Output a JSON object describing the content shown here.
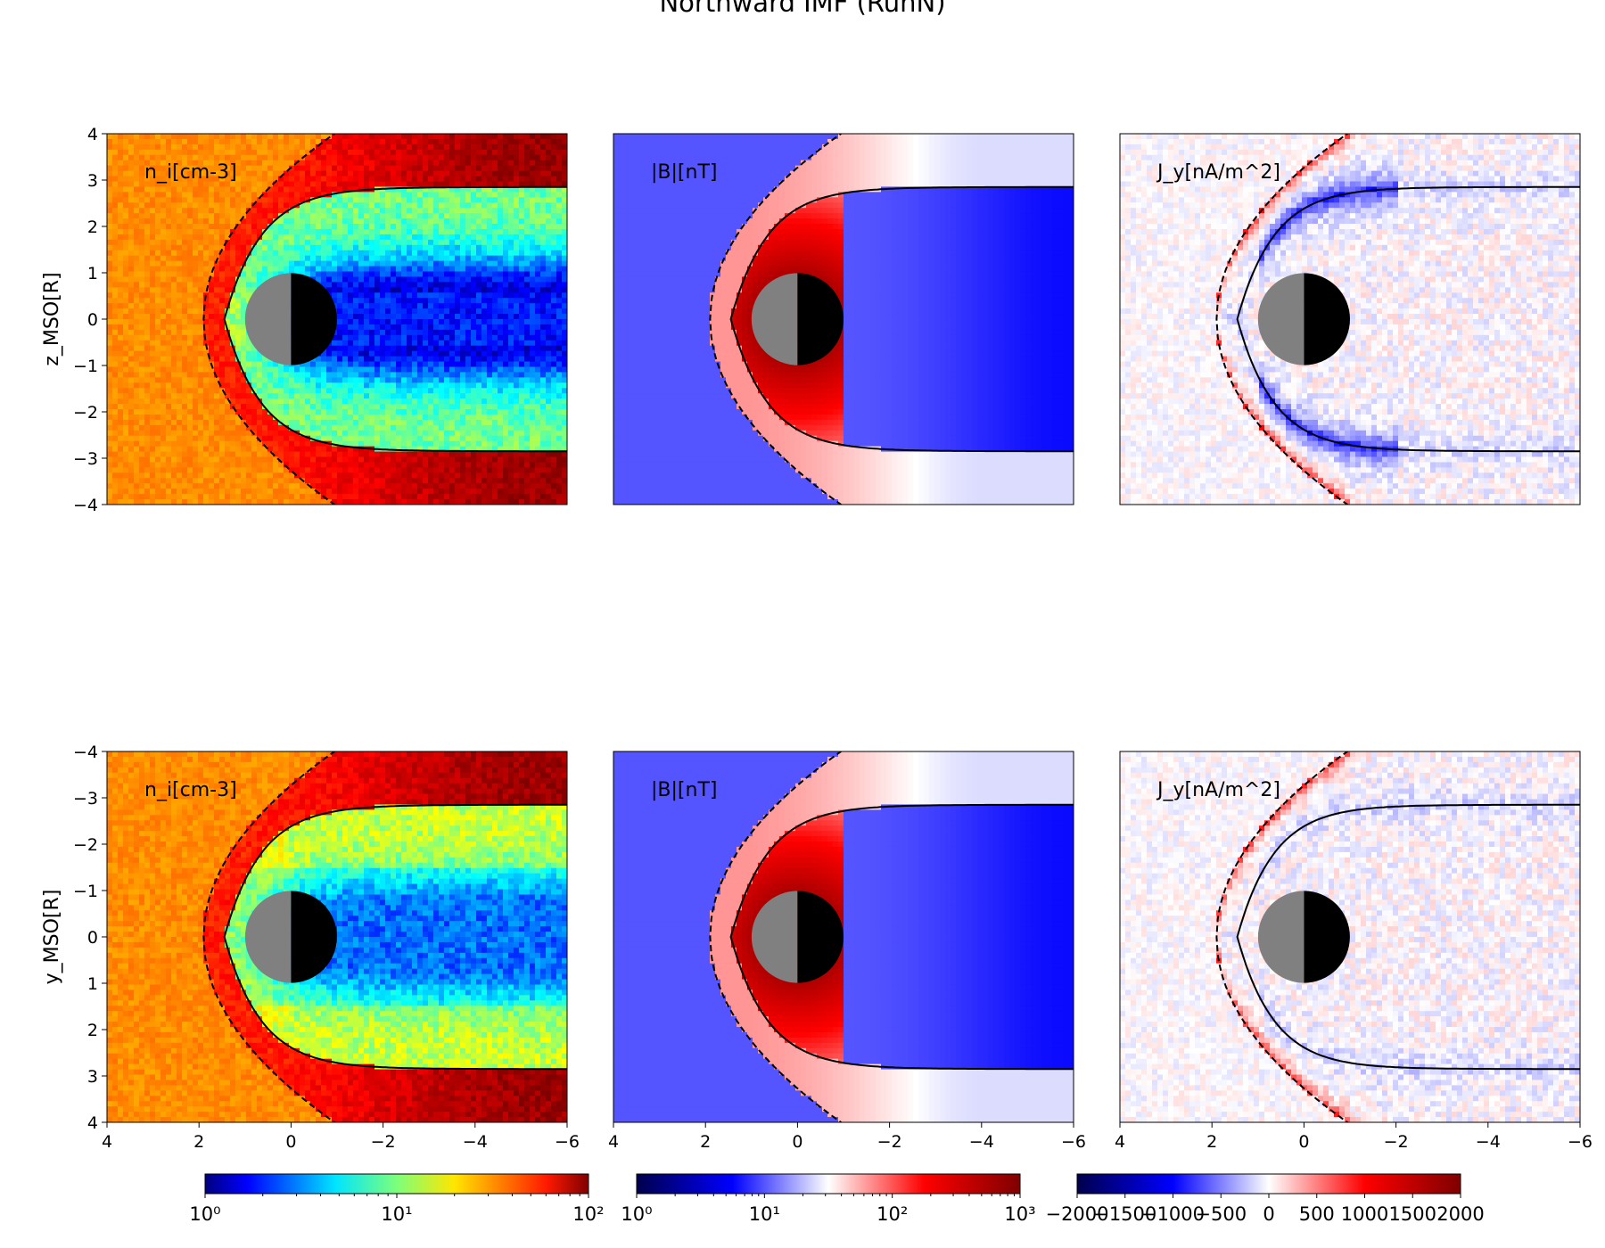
{
  "figure": {
    "title": "Northward IMF (RunN)"
  },
  "chart_data": [
    {
      "type": "heatmap",
      "row": "top",
      "quantity_label": "n_i[cm-3]",
      "field": "ion density",
      "colormap": "jet",
      "scale": "log",
      "xlim": [
        4,
        -6
      ],
      "ylim": [
        -4,
        4
      ],
      "ylabel": "z_MSO[R]",
      "yticks": [
        "4",
        "3",
        "2",
        "1",
        "0",
        "−1",
        "−2",
        "−3",
        "−4"
      ],
      "xticks": [],
      "background_value": 30,
      "planet": {
        "center": [
          0,
          0
        ],
        "radius": 1,
        "dayside": "gray",
        "nightside": "black"
      },
      "boundaries": {
        "bow_shock": "dashed",
        "magnetopause": "solid"
      }
    },
    {
      "type": "heatmap",
      "row": "top",
      "quantity_label": "|B|[nT]",
      "field": "magnetic field magnitude",
      "colormap": "seismic",
      "scale": "log",
      "xlim": [
        4,
        -6
      ],
      "ylim": [
        -4,
        4
      ],
      "xticks": [],
      "yticks": [],
      "background_value": 10,
      "planet": {
        "center": [
          0,
          0
        ],
        "radius": 1,
        "dayside": "gray",
        "nightside": "black"
      },
      "boundaries": {
        "bow_shock": "dashed",
        "magnetopause": "solid"
      }
    },
    {
      "type": "heatmap",
      "row": "top",
      "quantity_label": "J_y[nA/m^2]",
      "field": "current density y",
      "colormap": "seismic",
      "scale": "linear",
      "xlim": [
        4,
        -6
      ],
      "ylim": [
        -4,
        4
      ],
      "xticks": [],
      "yticks": [],
      "background_value": 0,
      "planet": {
        "center": [
          0,
          0
        ],
        "radius": 1,
        "dayside": "gray",
        "nightside": "black"
      },
      "boundaries": {
        "bow_shock": "dashed",
        "magnetopause": "solid"
      }
    },
    {
      "type": "heatmap",
      "row": "bottom",
      "quantity_label": "n_i[cm-3]",
      "field": "ion density",
      "colormap": "jet",
      "scale": "log",
      "xlim": [
        4,
        -6
      ],
      "ylim": [
        -4,
        4
      ],
      "ylabel": "y_MSO[R]",
      "yticks": [
        "−4",
        "−3",
        "−2",
        "−1",
        "0",
        "1",
        "2",
        "3",
        "4"
      ],
      "xticks": [
        "4",
        "2",
        "0",
        "−2",
        "−4",
        "−6"
      ],
      "background_value": 30,
      "planet": {
        "center": [
          0,
          0
        ],
        "radius": 1,
        "dayside": "gray",
        "nightside": "black"
      },
      "boundaries": {
        "bow_shock": "dashed",
        "magnetopause": "solid"
      }
    },
    {
      "type": "heatmap",
      "row": "bottom",
      "quantity_label": "|B|[nT]",
      "field": "magnetic field magnitude",
      "colormap": "seismic",
      "scale": "log",
      "xlim": [
        4,
        -6
      ],
      "ylim": [
        -4,
        4
      ],
      "xticks": [
        "4",
        "2",
        "0",
        "−2",
        "−4",
        "−6"
      ],
      "yticks": [],
      "background_value": 10,
      "planet": {
        "center": [
          0,
          0
        ],
        "radius": 1,
        "dayside": "gray",
        "nightside": "black"
      },
      "boundaries": {
        "bow_shock": "dashed",
        "magnetopause": "solid"
      }
    },
    {
      "type": "heatmap",
      "row": "bottom",
      "quantity_label": "J_y[nA/m^2]",
      "field": "current density y",
      "colormap": "seismic",
      "scale": "linear",
      "xlim": [
        4,
        -6
      ],
      "ylim": [
        -4,
        4
      ],
      "xticks": [
        "4",
        "2",
        "0",
        "−2",
        "−4",
        "−6"
      ],
      "yticks": [],
      "background_value": 0,
      "planet": {
        "center": [
          0,
          0
        ],
        "radius": 1,
        "dayside": "gray",
        "nightside": "black"
      },
      "boundaries": {
        "bow_shock": "dashed",
        "magnetopause": "solid"
      }
    }
  ],
  "colorbars": [
    {
      "colormap": "jet",
      "scale": "log",
      "range": [
        1,
        100
      ],
      "ticks": [
        "10⁰",
        "10¹",
        "10²"
      ]
    },
    {
      "colormap": "seismic",
      "scale": "log",
      "range": [
        1,
        1000
      ],
      "ticks": [
        "10⁰",
        "10¹",
        "10²",
        "10³"
      ]
    },
    {
      "colormap": "seismic",
      "scale": "linear",
      "range": [
        -2000,
        2000
      ],
      "ticks": [
        "−2000",
        "−1500",
        "−1000",
        "−500",
        "0",
        "500",
        "1000",
        "1500",
        "2000"
      ]
    }
  ]
}
